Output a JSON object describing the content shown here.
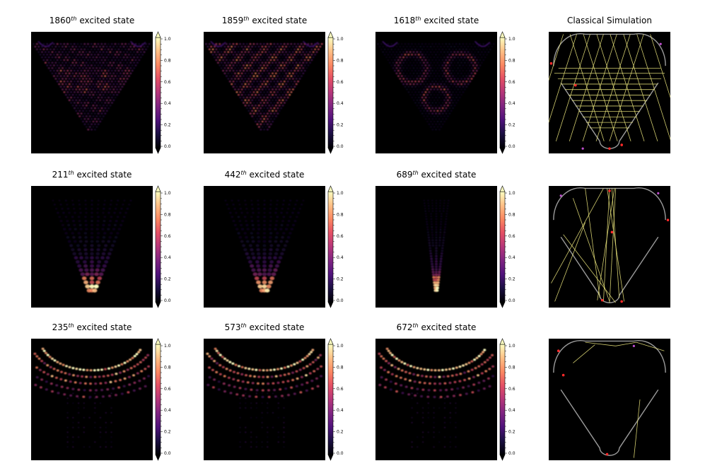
{
  "figure": {
    "panels": [
      {
        "id": "r1c1",
        "type": "state",
        "num": "1860",
        "sup": "th",
        "rest": " excited state",
        "shape": "wedge",
        "pattern": "hex"
      },
      {
        "id": "r1c2",
        "type": "state",
        "num": "1859",
        "sup": "th",
        "rest": " excited state",
        "shape": "wedge",
        "pattern": "diag"
      },
      {
        "id": "r1c3",
        "type": "state",
        "num": "1618",
        "sup": "th",
        "rest": " excited state",
        "shape": "wedge",
        "pattern": "rings"
      },
      {
        "id": "r1c4",
        "type": "classical",
        "title": "Classical Simulation",
        "variant": 1
      },
      {
        "id": "r2c1",
        "type": "state",
        "num": "211",
        "sup": "th",
        "rest": " excited state",
        "shape": "v",
        "pattern": "bouncing"
      },
      {
        "id": "r2c2",
        "type": "state",
        "num": "442",
        "sup": "th",
        "rest": " excited state",
        "shape": "v",
        "pattern": "bouncing"
      },
      {
        "id": "r2c3",
        "type": "state",
        "num": "689",
        "sup": "th",
        "rest": " excited state",
        "shape": "narrowv",
        "pattern": "bouncing"
      },
      {
        "id": "r2c4",
        "type": "classical",
        "title": "",
        "variant": 2
      },
      {
        "id": "r3c1",
        "type": "state",
        "num": "235",
        "sup": "th",
        "rest": " excited state",
        "shape": "arc",
        "pattern": "whispering"
      },
      {
        "id": "r3c2",
        "type": "state",
        "num": "573",
        "sup": "th",
        "rest": " excited state",
        "shape": "arc",
        "pattern": "whispering"
      },
      {
        "id": "r3c3",
        "type": "state",
        "num": "672",
        "sup": "th",
        "rest": " excited state",
        "shape": "arc",
        "pattern": "whispering"
      },
      {
        "id": "r3c4",
        "type": "classical",
        "title": "",
        "variant": 3
      }
    ],
    "colorbar": {
      "colormap": "magma",
      "ticks": [
        "0.0",
        "0.2",
        "0.4",
        "0.6",
        "0.8",
        "1.0"
      ],
      "range": [
        0,
        1
      ]
    },
    "colors": {
      "background": "#000000",
      "trajectory": "#e8e27a",
      "boundary": "#9a9a9a",
      "marker_red": "#ff2a2a",
      "marker_violet": "#c04fd0"
    }
  }
}
